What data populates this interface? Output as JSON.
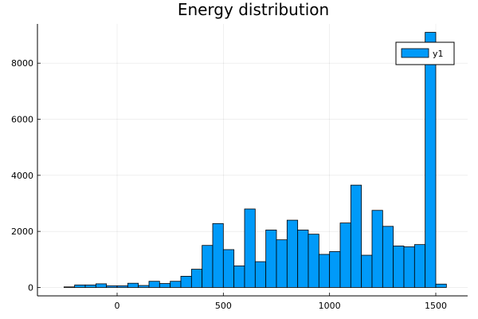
{
  "chart_data": {
    "type": "bar",
    "title": "Energy distribution",
    "xlabel": "",
    "ylabel": "",
    "xlim": [
      -375,
      1650
    ],
    "ylim": [
      -300,
      9400
    ],
    "x_ticks": [
      0,
      500,
      1000,
      1500
    ],
    "x_tick_labels": [
      "0",
      "500",
      "1000",
      "1500"
    ],
    "y_ticks": [
      0,
      2000,
      4000,
      6000,
      8000
    ],
    "y_tick_labels": [
      "0",
      "2000",
      "4000",
      "6000",
      "8000"
    ],
    "grid": true,
    "bin_width": 50,
    "series": [
      {
        "name": "y1",
        "color": "#009af9",
        "bin_starts": [
          -250,
          -200,
          -150,
          -100,
          -50,
          0,
          50,
          100,
          150,
          200,
          250,
          300,
          350,
          400,
          450,
          500,
          550,
          600,
          650,
          700,
          750,
          800,
          850,
          900,
          950,
          1000,
          1050,
          1100,
          1150,
          1200,
          1250,
          1300,
          1350,
          1400,
          1450,
          1500
        ],
        "values": [
          20,
          90,
          90,
          130,
          60,
          60,
          150,
          70,
          220,
          140,
          220,
          400,
          650,
          1500,
          2280,
          1350,
          770,
          2800,
          920,
          2050,
          1700,
          2400,
          2050,
          1900,
          1180,
          1280,
          2300,
          3650,
          1150,
          2750,
          2180,
          1480,
          1450,
          1530,
          9100,
          120
        ]
      }
    ],
    "legend": {
      "position": "top-right",
      "entries": [
        "y1"
      ]
    }
  }
}
